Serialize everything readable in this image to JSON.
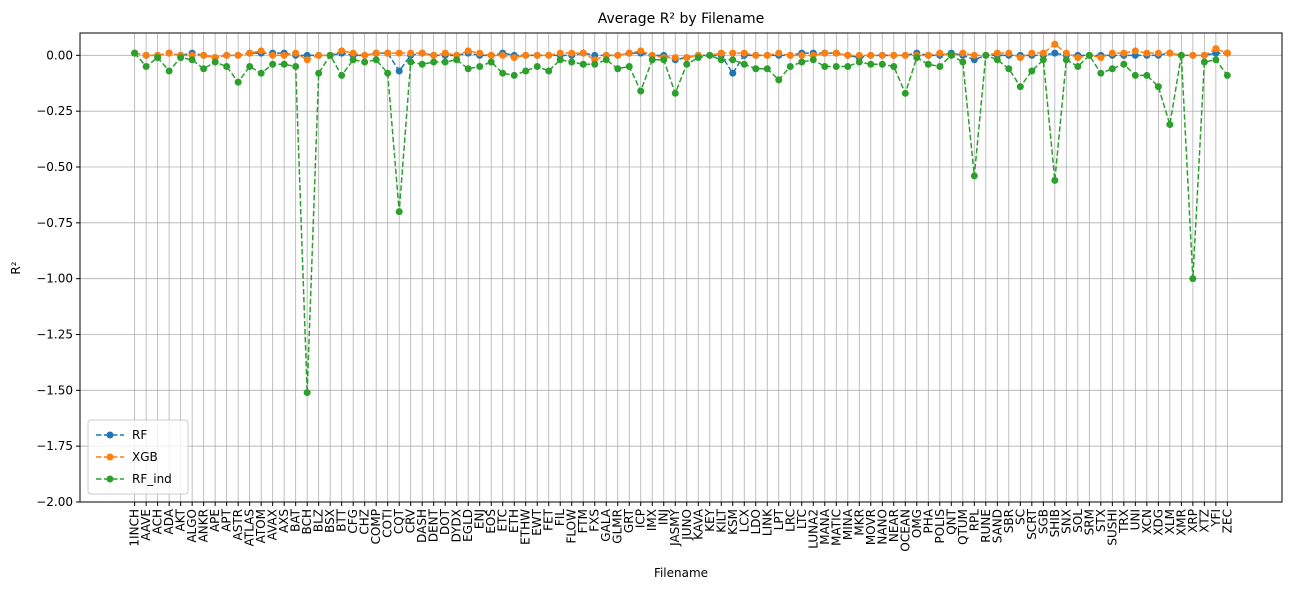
{
  "chart_data": {
    "type": "line",
    "title": "Average R² by Filename",
    "x_label": "Filename",
    "y_label": "R²",
    "categories": [
      "1INCH",
      "AAVE",
      "ACH",
      "ADA",
      "AKT",
      "ALGO",
      "ANKR",
      "APE",
      "APT",
      "ASTR",
      "ATLAS",
      "ATOM",
      "AVAX",
      "AXS",
      "BAT",
      "BCH",
      "BLZ",
      "BSX",
      "BTT",
      "CFG",
      "CHZ",
      "COMP",
      "COTI",
      "CQT",
      "CRV",
      "DASH",
      "DENT",
      "DOT",
      "DYDX",
      "EGLD",
      "ENJ",
      "EOS",
      "ETC",
      "ETH",
      "ETHW",
      "EWT",
      "FET",
      "FIL",
      "FLOW",
      "FTM",
      "FXS",
      "GALA",
      "GLMR",
      "GRT",
      "ICP",
      "IMX",
      "INJ",
      "JASMY",
      "JUNO",
      "KAVA",
      "KEY",
      "KILT",
      "KSM",
      "LCX",
      "LDO",
      "LINK",
      "LPT",
      "LRC",
      "LTC",
      "LUNA2",
      "MANA",
      "MATIC",
      "MINA",
      "MKR",
      "MOVR",
      "NANO",
      "NEAR",
      "OCEAN",
      "OMG",
      "PHA",
      "POLIS",
      "QNT",
      "QTUM",
      "RPL",
      "RUNE",
      "SAND",
      "SBR",
      "SC",
      "SCRT",
      "SGB",
      "SHIB",
      "SNX",
      "SOL",
      "SRM",
      "STX",
      "SUSHI",
      "TRX",
      "UNI",
      "XCN",
      "XDG",
      "XLM",
      "XMR",
      "XRP",
      "XTZ",
      "YFI",
      "ZEC"
    ],
    "series": [
      {
        "name": "RF",
        "color": "#1f77b4",
        "values": [
          0.01,
          0.0,
          0.0,
          0.01,
          0.0,
          0.01,
          0.0,
          -0.01,
          0.0,
          0.0,
          0.01,
          0.01,
          0.01,
          0.01,
          0.0,
          0.0,
          0.0,
          0.0,
          0.01,
          0.0,
          0.0,
          0.01,
          0.01,
          -0.07,
          0.0,
          0.01,
          0.0,
          0.0,
          0.0,
          0.01,
          0.0,
          0.0,
          0.01,
          0.0,
          0.0,
          0.0,
          0.0,
          0.0,
          0.0,
          0.01,
          0.0,
          0.0,
          0.0,
          0.01,
          0.01,
          0.0,
          0.0,
          -0.02,
          -0.01,
          0.0,
          0.0,
          0.0,
          -0.08,
          0.0,
          0.0,
          0.0,
          0.0,
          0.0,
          0.01,
          0.01,
          0.01,
          0.01,
          0.0,
          -0.01,
          0.0,
          0.0,
          0.0,
          0.0,
          0.01,
          0.0,
          0.0,
          0.01,
          0.0,
          -0.02,
          0.0,
          0.0,
          0.0,
          0.0,
          0.0,
          0.0,
          0.01,
          0.0,
          0.0,
          0.0,
          0.0,
          0.0,
          0.0,
          0.0,
          0.0,
          0.0,
          0.01,
          0.0,
          0.0,
          0.0,
          0.01,
          0.01
        ]
      },
      {
        "name": "XGB",
        "color": "#ff7f0e",
        "values": [
          0.01,
          0.0,
          0.0,
          0.01,
          0.0,
          0.0,
          0.0,
          -0.01,
          0.0,
          0.0,
          0.01,
          0.02,
          0.0,
          0.0,
          0.01,
          -0.02,
          0.0,
          0.0,
          0.02,
          0.01,
          0.0,
          0.01,
          0.01,
          0.01,
          0.01,
          0.01,
          0.0,
          0.01,
          0.0,
          0.02,
          0.01,
          0.0,
          0.0,
          -0.01,
          0.0,
          0.0,
          0.0,
          0.01,
          0.01,
          0.01,
          -0.02,
          0.0,
          0.0,
          0.01,
          0.02,
          0.0,
          -0.01,
          -0.01,
          -0.01,
          0.0,
          0.0,
          0.01,
          0.01,
          0.01,
          0.0,
          0.0,
          0.01,
          0.0,
          0.0,
          0.0,
          0.01,
          0.01,
          0.0,
          0.0,
          0.0,
          0.0,
          0.0,
          0.0,
          0.0,
          0.0,
          0.01,
          0.0,
          0.01,
          0.0,
          0.0,
          0.01,
          0.01,
          -0.01,
          0.01,
          0.01,
          0.05,
          0.01,
          -0.01,
          0.0,
          -0.01,
          0.01,
          0.01,
          0.02,
          0.01,
          0.01,
          0.01,
          0.0,
          0.0,
          0.0,
          0.03,
          0.01
        ]
      },
      {
        "name": "RF_ind",
        "color": "#2ca02c",
        "values": [
          0.01,
          -0.05,
          -0.01,
          -0.07,
          -0.01,
          -0.02,
          -0.06,
          -0.03,
          -0.05,
          -0.12,
          -0.05,
          -0.08,
          -0.04,
          -0.04,
          -0.05,
          -1.51,
          -0.08,
          0.0,
          -0.09,
          -0.02,
          -0.03,
          -0.02,
          -0.08,
          -0.7,
          -0.03,
          -0.04,
          -0.03,
          -0.03,
          -0.02,
          -0.06,
          -0.05,
          -0.03,
          -0.08,
          -0.09,
          -0.07,
          -0.05,
          -0.07,
          -0.02,
          -0.03,
          -0.04,
          -0.04,
          -0.02,
          -0.06,
          -0.05,
          -0.16,
          -0.02,
          -0.02,
          -0.17,
          -0.04,
          -0.01,
          0.0,
          -0.02,
          -0.02,
          -0.04,
          -0.06,
          -0.06,
          -0.11,
          -0.05,
          -0.03,
          -0.02,
          -0.05,
          -0.05,
          -0.05,
          -0.03,
          -0.04,
          -0.04,
          -0.05,
          -0.17,
          -0.01,
          -0.04,
          -0.05,
          0.0,
          -0.03,
          -0.54,
          0.0,
          -0.02,
          -0.06,
          -0.14,
          -0.07,
          -0.02,
          -0.56,
          -0.02,
          -0.05,
          0.0,
          -0.08,
          -0.06,
          -0.04,
          -0.09,
          -0.09,
          -0.14,
          -0.31,
          0.0,
          -1.0,
          -0.03,
          -0.02,
          -0.09
        ]
      }
    ],
    "ylim": [
      -2,
      0.1
    ],
    "yticks": [
      {
        "value": -2,
        "label": "−2.00"
      },
      {
        "value": -1.75,
        "label": "−1.75"
      },
      {
        "value": -1.5,
        "label": "−1.50"
      },
      {
        "value": -1.25,
        "label": "−1.25"
      },
      {
        "value": -1,
        "label": "−1.00"
      },
      {
        "value": -0.75,
        "label": "−0.75"
      },
      {
        "value": -0.5,
        "label": "−0.50"
      },
      {
        "value": -0.25,
        "label": "−0.25"
      },
      {
        "value": 0,
        "label": "0.00"
      }
    ],
    "grid": true,
    "legend": "lower left"
  }
}
